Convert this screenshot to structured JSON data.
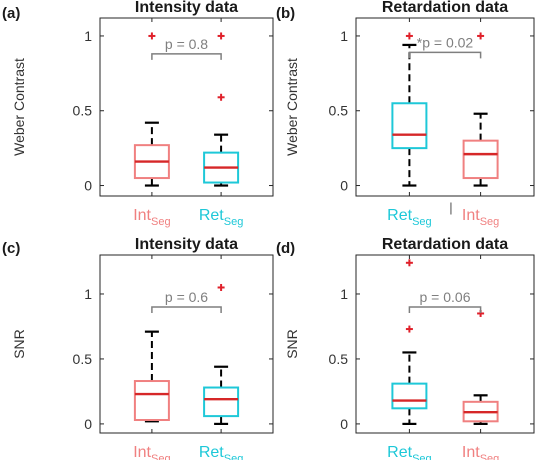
{
  "chart_data": [
    {
      "type": "box",
      "panel_label": "(a)",
      "title": "Intensity data",
      "ylabel": "Weber Contrast",
      "ylim": [
        -0.07,
        1.12
      ],
      "yticks": [
        0,
        0.5,
        1
      ],
      "ytick_labels": [
        "0",
        "0.5",
        "1"
      ],
      "categories": [
        {
          "main": "Int",
          "sub": "Seg",
          "color": "#f08080"
        },
        {
          "main": "Ret",
          "sub": "Seg",
          "color": "#1ec8d8"
        }
      ],
      "boxes": [
        {
          "q1": 0.05,
          "median": 0.16,
          "q3": 0.27,
          "whisker_low": 0.0,
          "whisker_high": 0.42,
          "outliers": [
            1.0
          ]
        },
        {
          "q1": 0.02,
          "median": 0.12,
          "q3": 0.22,
          "whisker_low": 0.0,
          "whisker_high": 0.34,
          "outliers": [
            0.59,
            1.0
          ]
        }
      ],
      "annotation": {
        "text": "p = 0.8",
        "y": 0.88
      }
    },
    {
      "type": "box",
      "panel_label": "(b)",
      "title": "Retardation data",
      "ylabel": "Weber Contrast",
      "ylim": [
        -0.07,
        1.12
      ],
      "yticks": [
        0,
        0.5,
        1
      ],
      "ytick_labels": [
        "0",
        "0.5",
        "1"
      ],
      "categories": [
        {
          "main": "Ret",
          "sub": "Seg",
          "color": "#1ec8d8"
        },
        {
          "main": "Int",
          "sub": "Seg",
          "color": "#f08080"
        }
      ],
      "boxes": [
        {
          "q1": 0.25,
          "median": 0.34,
          "q3": 0.55,
          "whisker_low": 0.0,
          "whisker_high": 0.94,
          "outliers": [
            1.0
          ]
        },
        {
          "q1": 0.05,
          "median": 0.21,
          "q3": 0.3,
          "whisker_low": 0.0,
          "whisker_high": 0.48,
          "outliers": [
            1.0
          ]
        }
      ],
      "annotation": {
        "text": "*p = 0.02",
        "y": 0.89
      }
    },
    {
      "type": "box",
      "panel_label": "(c)",
      "title": "Intensity data",
      "ylabel": "SNR",
      "ylim": [
        -0.07,
        1.3
      ],
      "yticks": [
        0,
        0.5,
        1
      ],
      "ytick_labels": [
        "0",
        "0.5",
        "1"
      ],
      "categories": [
        {
          "main": "Int",
          "sub": "Seg",
          "color": "#f08080"
        },
        {
          "main": "Ret",
          "sub": "Seg",
          "color": "#1ec8d8"
        }
      ],
      "boxes": [
        {
          "q1": 0.03,
          "median": 0.23,
          "q3": 0.33,
          "whisker_low": 0.02,
          "whisker_high": 0.71,
          "outliers": []
        },
        {
          "q1": 0.06,
          "median": 0.19,
          "q3": 0.28,
          "whisker_low": 0.0,
          "whisker_high": 0.44,
          "outliers": [
            1.05
          ]
        }
      ],
      "annotation": {
        "text": "p = 0.6",
        "y": 0.9
      }
    },
    {
      "type": "box",
      "panel_label": "(d)",
      "title": "Retardation data",
      "ylabel": "SNR",
      "ylim": [
        -0.07,
        1.3
      ],
      "yticks": [
        0,
        0.5,
        1
      ],
      "ytick_labels": [
        "0",
        "0.5",
        "1"
      ],
      "categories": [
        {
          "main": "Ret",
          "sub": "Seg",
          "color": "#1ec8d8"
        },
        {
          "main": "Int",
          "sub": "Seg",
          "color": "#f08080"
        }
      ],
      "boxes": [
        {
          "q1": 0.12,
          "median": 0.18,
          "q3": 0.31,
          "whisker_low": 0.0,
          "whisker_high": 0.55,
          "outliers": [
            0.73,
            1.24
          ]
        },
        {
          "q1": 0.02,
          "median": 0.09,
          "q3": 0.17,
          "whisker_low": 0.0,
          "whisker_high": 0.22,
          "outliers": [
            0.85
          ]
        }
      ],
      "annotation": {
        "text": "p = 0.06",
        "y": 0.9
      }
    }
  ],
  "extra_marks": {
    "panel_b_tick_label": "|"
  },
  "colors": {
    "median": "#d62728",
    "outlier": "#e0202a",
    "whisker": "#000000",
    "bracket": "#7f7f7f",
    "annotation": "#7f7f7f"
  }
}
